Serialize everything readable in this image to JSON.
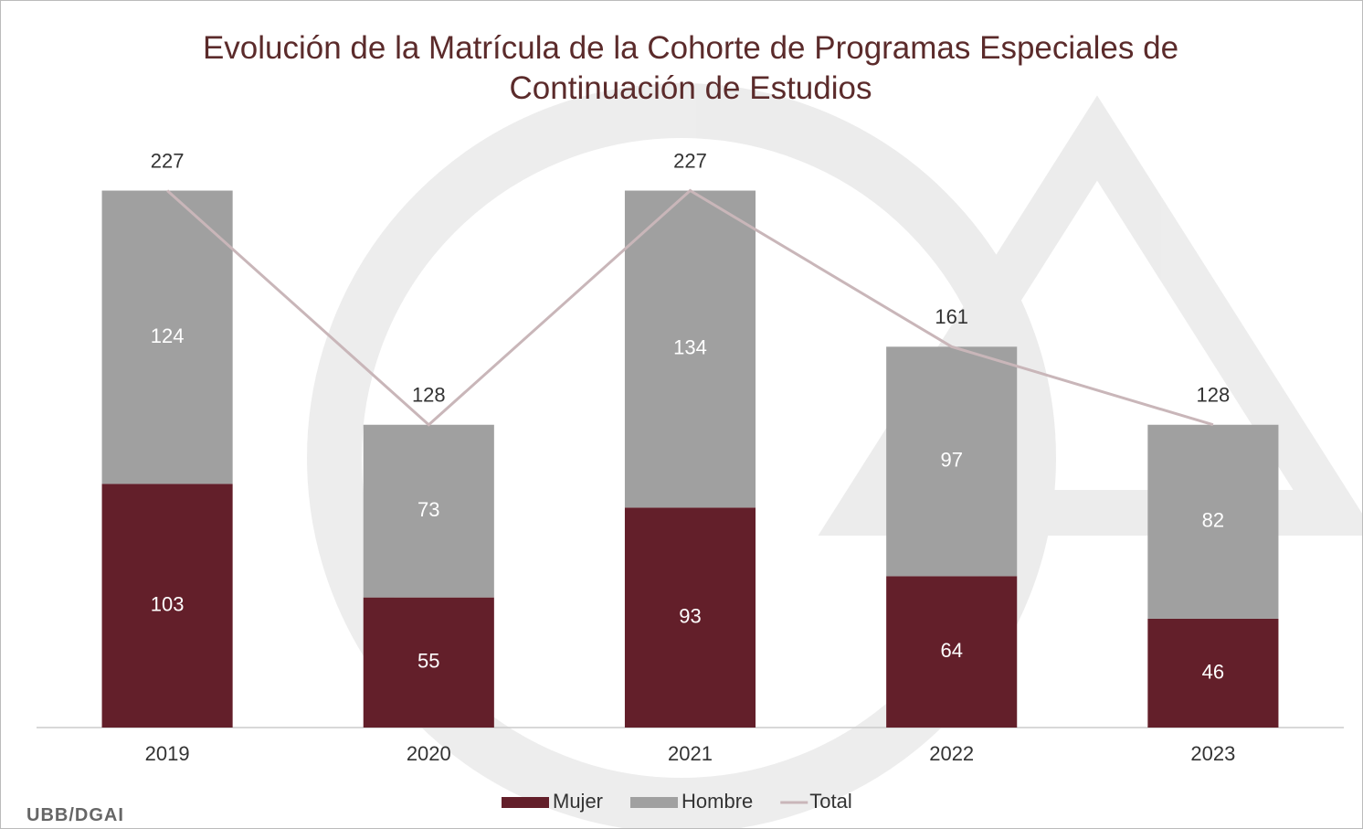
{
  "chart_data": {
    "type": "bar",
    "stacked": true,
    "title": "Evolución de la Matrícula de la Cohorte de Programas Especiales de Continuación de Estudios",
    "categories": [
      "2019",
      "2020",
      "2021",
      "2022",
      "2023"
    ],
    "series": [
      {
        "name": "Mujer",
        "color": "#631f2a",
        "values": [
          103,
          55,
          93,
          64,
          46
        ]
      },
      {
        "name": "Hombre",
        "color": "#a0a0a0",
        "values": [
          124,
          73,
          134,
          97,
          82
        ]
      },
      {
        "name": "Total",
        "type": "line",
        "color": "#c9b6b9",
        "values": [
          227,
          128,
          227,
          161,
          128
        ]
      }
    ],
    "ylim": [
      0,
      250
    ],
    "legend": "bottom",
    "source": "UBB/DGAI"
  }
}
